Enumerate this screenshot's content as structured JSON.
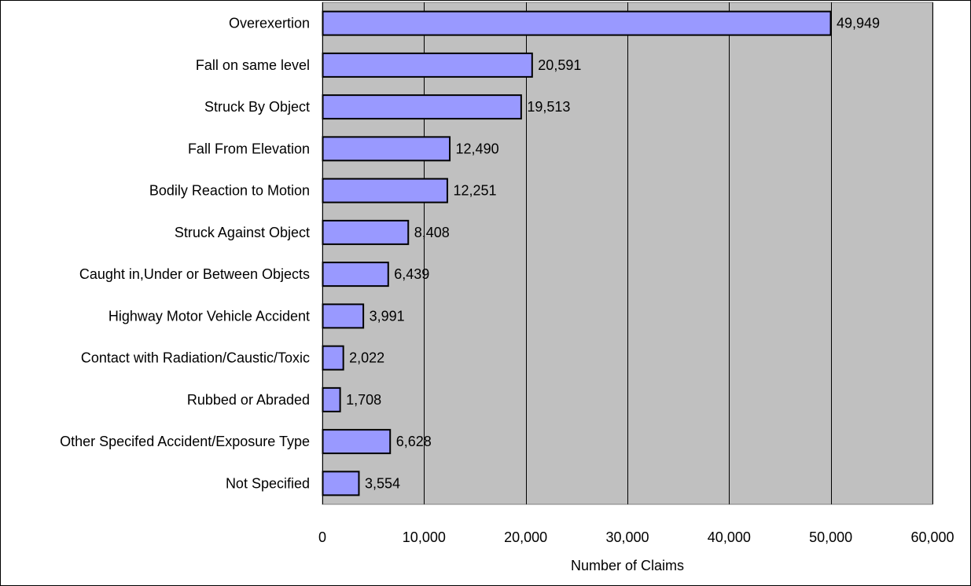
{
  "chart_data": {
    "type": "bar",
    "orientation": "horizontal",
    "categories": [
      "Overexertion",
      "Fall on same level",
      "Struck By Object",
      "Fall From Elevation",
      "Bodily Reaction to Motion",
      "Struck Against Object",
      "Caught in,Under or Between Objects",
      "Highway Motor Vehicle Accident",
      "Contact with Radiation/Caustic/Toxic",
      "Rubbed or Abraded",
      "Other Specifed Accident/Exposure Type",
      "Not Specified"
    ],
    "values": [
      49949,
      20591,
      19513,
      12490,
      12251,
      8408,
      6439,
      3991,
      2022,
      1708,
      6628,
      3554
    ],
    "data_labels": [
      "49,949",
      "20,591",
      "19,513",
      "12,490",
      "12,251",
      "8,408",
      "6,439",
      "3,991",
      "2,022",
      "1,708",
      "6,628",
      "3,554"
    ],
    "xlabel": "Number of Claims",
    "ylabel": "",
    "title": "",
    "xlim": [
      0,
      60000
    ],
    "xticks": [
      0,
      10000,
      20000,
      30000,
      40000,
      50000,
      60000
    ],
    "xtick_labels": [
      "0",
      "10,000",
      "20,000",
      "30,000",
      "40,000",
      "50,000",
      "60,000"
    ],
    "grid": true,
    "legend": "none",
    "colors": {
      "bar_fill": "#9999ff",
      "bar_stroke": "#000000",
      "plot_background": "#c0c0c0",
      "gridline": "#000000"
    }
  }
}
